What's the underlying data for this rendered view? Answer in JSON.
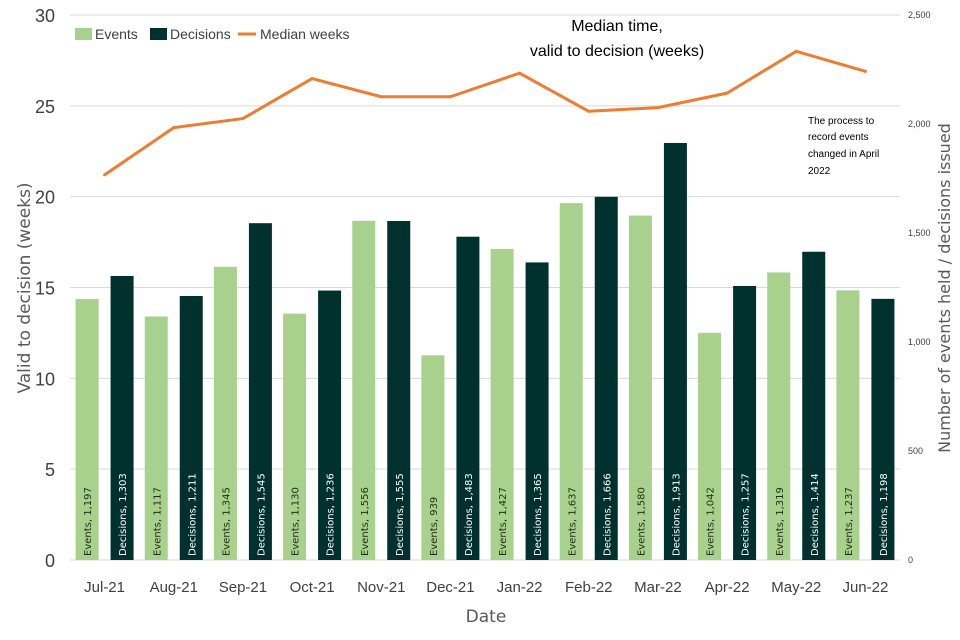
{
  "chart_data": {
    "type": "bar",
    "title_lines": [
      "Median time,",
      "valid to decision (weeks)"
    ],
    "xlabel": "Date",
    "ylabel": "Valid to decision (weeks)",
    "y2label": "Number of events held / decisions issued",
    "ylim": [
      0,
      30
    ],
    "y2lim": [
      0,
      2500
    ],
    "yticks": [
      "0",
      "5",
      "10",
      "15",
      "20",
      "25",
      "30"
    ],
    "y2ticks": [
      "0",
      "500",
      "1,000",
      "1,500",
      "2,000",
      "2,500"
    ],
    "categories": [
      "Jul-21",
      "Aug-21",
      "Sep-21",
      "Oct-21",
      "Nov-21",
      "Dec-21",
      "Jan-22",
      "Feb-22",
      "Mar-22",
      "Apr-22",
      "May-22",
      "Jun-22"
    ],
    "series": [
      {
        "name": "Events",
        "axis": "secondary",
        "color": "#a9d18e",
        "values": [
          1197,
          1117,
          1345,
          1130,
          1556,
          939,
          1427,
          1637,
          1580,
          1042,
          1319,
          1237
        ],
        "labels": [
          "Events, 1,197",
          "Events, 1,117",
          "Events, 1,345",
          "Events, 1,130",
          "Events, 1,556",
          "Events, 939",
          "Events, 1,427",
          "Events, 1,637",
          "Events, 1,580",
          "Events, 1,042",
          "Events, 1,319",
          "Events, 1,237"
        ]
      },
      {
        "name": "Decisions",
        "axis": "secondary",
        "color": "#00312f",
        "values": [
          1303,
          1211,
          1545,
          1236,
          1555,
          1483,
          1365,
          1666,
          1913,
          1257,
          1414,
          1198
        ],
        "labels": [
          "Decisions, 1,303",
          "Decisions, 1,211",
          "Decisions, 1,545",
          "Decisions, 1,236",
          "Decisions, 1,555",
          "Decisions, 1,483",
          "Decisions, 1,365",
          "Decisions, 1,666",
          "Decisions, 1,913",
          "Decisions, 1,257",
          "Decisions, 1,414",
          "Decisions, 1,198"
        ]
      },
      {
        "name": "Median weeks",
        "axis": "primary",
        "type": "line",
        "color": "#ed7d31",
        "values": [
          21.2,
          23.8,
          24.3,
          26.5,
          25.5,
          25.5,
          26.8,
          24.7,
          24.9,
          25.7,
          28.0,
          26.9
        ]
      }
    ],
    "annotation_lines": [
      "The process to",
      "record events",
      "changed in April",
      "2022"
    ],
    "legend_position": "top-left",
    "grid": true
  }
}
